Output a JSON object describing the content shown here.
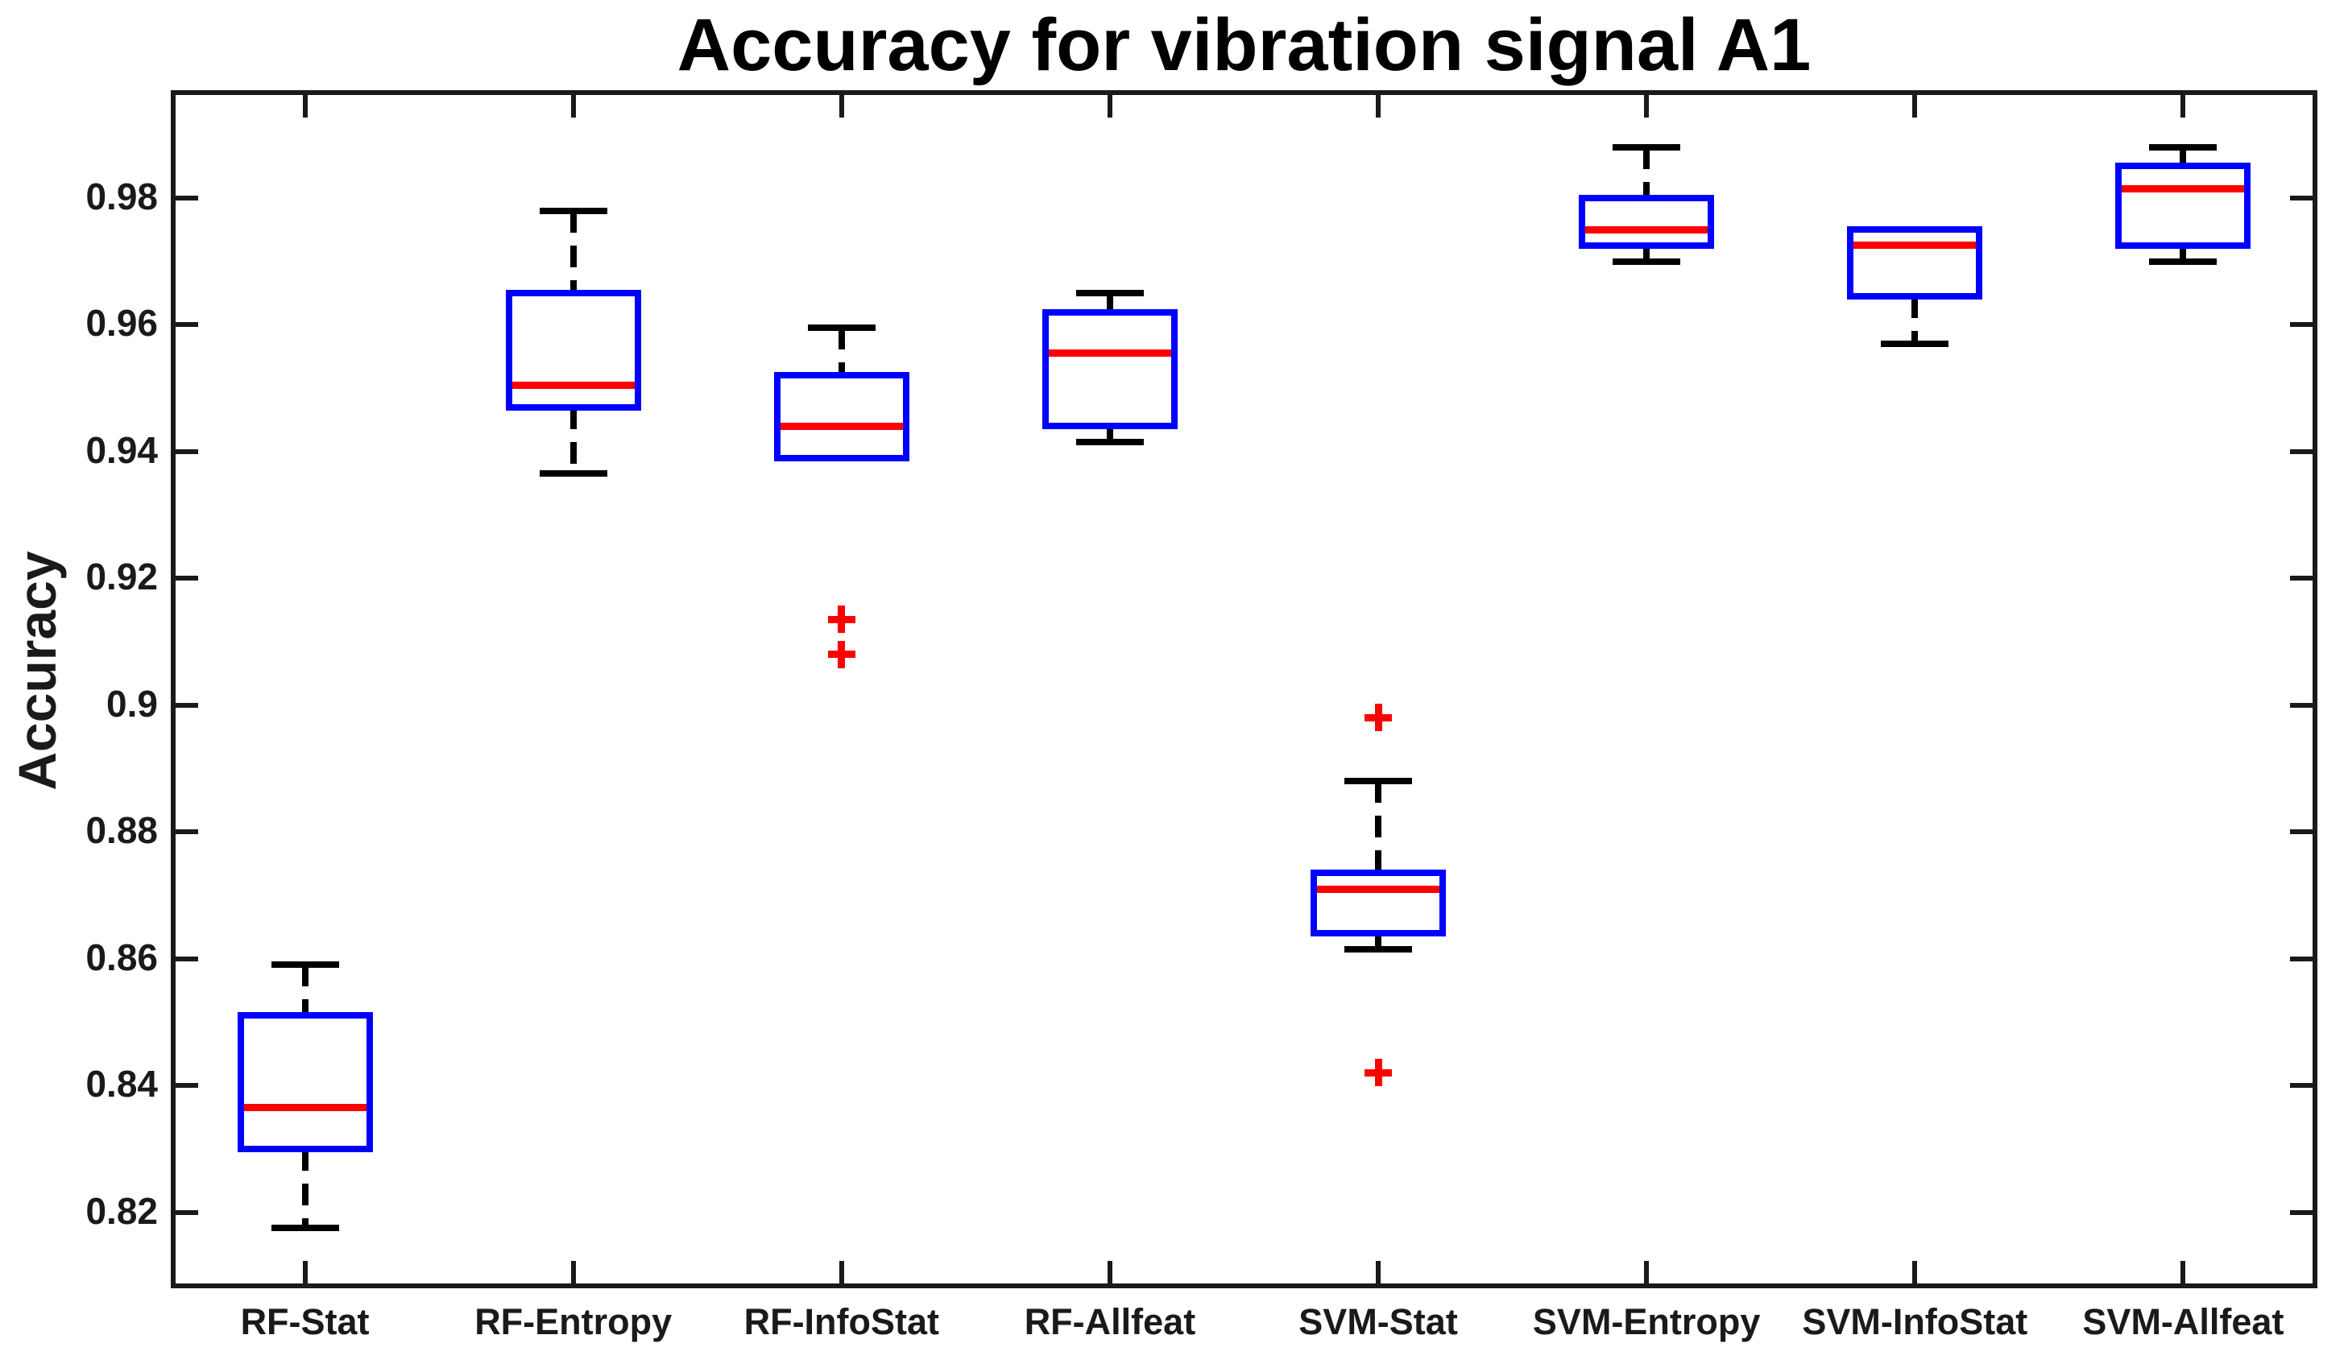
{
  "figure_title": "Accuracy for vibration signal A1",
  "chart_data": {
    "type": "boxplot",
    "title": "Accuracy for vibration signal A1",
    "xlabel": "",
    "ylabel": "Accuracy",
    "ylim": [
      0.808,
      0.997
    ],
    "grid": false,
    "legend": "none",
    "categories": [
      "RF-Stat",
      "RF-Entropy",
      "RF-InfoStat",
      "RF-Allfeat",
      "SVM-Stat",
      "SVM-Entropy",
      "SVM-InfoStat",
      "SVM-Allfeat"
    ],
    "yticks": [
      {
        "value": 0.82,
        "label": "0.82"
      },
      {
        "value": 0.84,
        "label": "0.84"
      },
      {
        "value": 0.86,
        "label": "0.86"
      },
      {
        "value": 0.88,
        "label": "0.88"
      },
      {
        "value": 0.9,
        "label": "0.9"
      },
      {
        "value": 0.92,
        "label": "0.92"
      },
      {
        "value": 0.94,
        "label": "0.94"
      },
      {
        "value": 0.96,
        "label": "0.96"
      },
      {
        "value": 0.98,
        "label": "0.98"
      }
    ],
    "boxes": [
      {
        "category": "RF-Stat",
        "whisker_low": 0.8175,
        "q1": 0.83,
        "median": 0.8365,
        "q3": 0.851,
        "whisker_high": 0.859,
        "outliers": []
      },
      {
        "category": "RF-Entropy",
        "whisker_low": 0.9365,
        "q1": 0.947,
        "median": 0.9505,
        "q3": 0.965,
        "whisker_high": 0.978,
        "outliers": []
      },
      {
        "category": "RF-InfoStat",
        "whisker_low": 0.939,
        "q1": 0.939,
        "median": 0.944,
        "q3": 0.952,
        "whisker_high": 0.9595,
        "outliers": [
          0.9135,
          0.908
        ]
      },
      {
        "category": "RF-Allfeat",
        "whisker_low": 0.9415,
        "q1": 0.944,
        "median": 0.9555,
        "q3": 0.962,
        "whisker_high": 0.965,
        "outliers": []
      },
      {
        "category": "SVM-Stat",
        "whisker_low": 0.8615,
        "q1": 0.864,
        "median": 0.871,
        "q3": 0.8735,
        "whisker_high": 0.888,
        "outliers": [
          0.898,
          0.842
        ]
      },
      {
        "category": "SVM-Entropy",
        "whisker_low": 0.97,
        "q1": 0.9725,
        "median": 0.975,
        "q3": 0.98,
        "whisker_high": 0.988,
        "outliers": []
      },
      {
        "category": "SVM-InfoStat",
        "whisker_low": 0.957,
        "q1": 0.9645,
        "median": 0.9725,
        "q3": 0.975,
        "whisker_high": 0.975,
        "outliers": []
      },
      {
        "category": "SVM-Allfeat",
        "whisker_low": 0.97,
        "q1": 0.9725,
        "median": 0.9815,
        "q3": 0.985,
        "whisker_high": 0.988,
        "outliers": []
      }
    ],
    "colors": {
      "box": "#0000ff",
      "median": "#ff0000",
      "whisker": "#000000",
      "cap": "#000000",
      "outlier": "#ff0000",
      "axis": "#1a1a1a",
      "text": "#1a1a1a",
      "title": "#000000",
      "background": "#ffffff"
    }
  }
}
